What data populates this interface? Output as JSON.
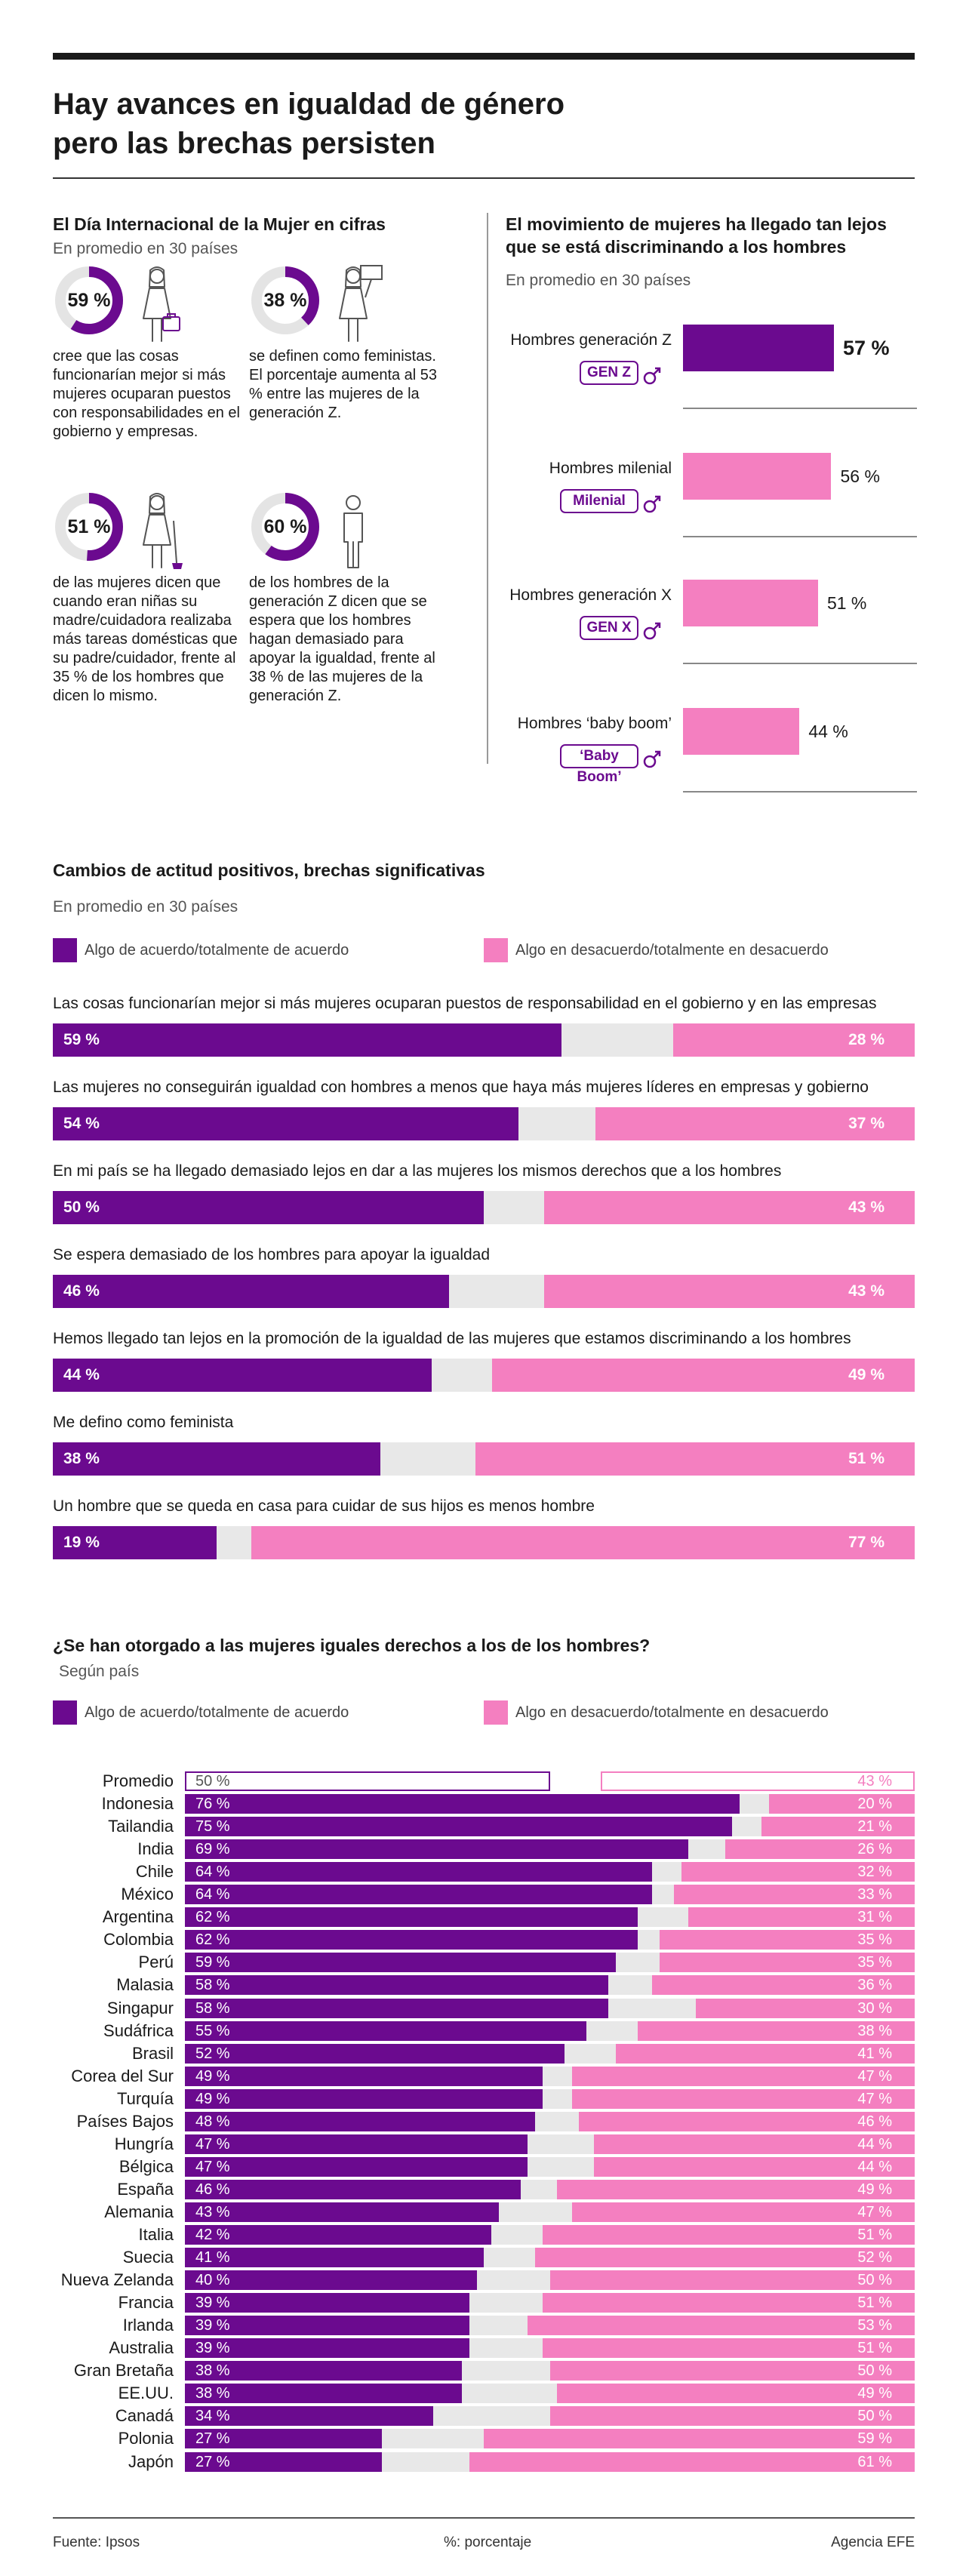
{
  "header": {
    "title_line1": "Hay avances en igualdad de género",
    "title_line2": "pero las brechas persisten"
  },
  "colors": {
    "agree": "#6b0a8f",
    "disagree": "#f47fc0",
    "neutral": "#e8e8e8",
    "accent": "#6b0a8f"
  },
  "stats_section": {
    "title": "El Día Internacional de la Mujer en cifras",
    "subtitle": "En promedio en 30 países",
    "stats": [
      {
        "value": 59,
        "label": "59 %",
        "text": "cree que las cosas funcionarían mejor si más mujeres ocuparan puestos con responsabilidades en el gobierno y empresas.",
        "icon": "businesswoman-icon"
      },
      {
        "value": 38,
        "label": "38 %",
        "text": "se definen como feministas. El porcentaje aumenta al 53 % entre las mujeres de la generación Z.",
        "icon": "woman-with-sign-icon"
      },
      {
        "value": 51,
        "label": "51 %",
        "text": "de las mujeres dicen que cuando eran niñas su madre/cuidadora realizaba más tareas domésticas que su padre/cuidador, frente al 35 % de los hombres que dicen lo mismo.",
        "icon": "woman-with-mop-icon"
      },
      {
        "value": 60,
        "label": "60 %",
        "text": "de los hombres de la generación Z dicen que se espera que los hombres hagan demasiado para apoyar la igualdad, frente al 38 % de las mujeres de la generación Z.",
        "icon": "man-icon"
      }
    ]
  },
  "gen_section": {
    "title_line1": "El movimiento de mujeres ha llegado tan lejos",
    "title_line2": "que se está discriminando a los hombres",
    "subtitle": "En promedio en 30 países"
  },
  "chart_data": [
    {
      "type": "bar",
      "orientation": "horizontal",
      "title": "El movimiento de mujeres ha llegado tan lejos que se está discriminando a los hombres",
      "subtitle": "En promedio en 30 países",
      "unit": "%",
      "categories": [
        "Hombres generación Z",
        "Hombres milenial",
        "Hombres generación X",
        "Hombres ‘baby boom’"
      ],
      "badges": [
        "GEN Z",
        "Milenial",
        "GEN X",
        "‘Baby Boom’"
      ],
      "values": [
        57,
        56,
        51,
        44
      ],
      "value_labels": [
        "57 %",
        "56 %",
        "51 %",
        "44 %"
      ],
      "highlight_index": 0
    },
    {
      "type": "bar",
      "orientation": "horizontal-stacked",
      "title": "Cambios de actitud positivos, brechas significativas",
      "subtitle": "En promedio en 30 países",
      "legend": [
        "Algo de acuerdo/totalmente de acuerdo",
        "Algo en desacuerdo/totalmente en desacuerdo"
      ],
      "unit": "%",
      "rows": [
        {
          "question": "Las cosas funcionarían mejor si más mujeres ocuparan puestos de responsabilidad en el gobierno y en las empresas",
          "agree": 59,
          "disagree": 28,
          "agree_label": "59 %",
          "disagree_label": "28 %"
        },
        {
          "question": "Las mujeres no conseguirán igualdad con hombres a menos que haya más mujeres líderes en empresas y gobierno",
          "agree": 54,
          "disagree": 37,
          "agree_label": "54 %",
          "disagree_label": "37 %"
        },
        {
          "question": "En mi país se ha llegado demasiado lejos en dar a las mujeres los mismos derechos que a los hombres",
          "agree": 50,
          "disagree": 43,
          "agree_label": "50 %",
          "disagree_label": "43 %"
        },
        {
          "question": "Se espera demasiado de los hombres para apoyar la igualdad",
          "agree": 46,
          "disagree": 43,
          "agree_label": "46 %",
          "disagree_label": "43 %"
        },
        {
          "question": "Hemos llegado tan lejos en la promoción de la igualdad de las mujeres que estamos discriminando a los hombres",
          "agree": 44,
          "disagree": 49,
          "agree_label": "44 %",
          "disagree_label": "49 %"
        },
        {
          "question": "Me defino como feminista",
          "agree": 38,
          "disagree": 51,
          "agree_label": "38 %",
          "disagree_label": "51 %"
        },
        {
          "question": "Un hombre que se queda en casa para cuidar de sus hijos es menos hombre",
          "agree": 19,
          "disagree": 77,
          "agree_label": "19 %",
          "disagree_label": "77 %"
        }
      ]
    },
    {
      "type": "bar",
      "orientation": "horizontal-stacked",
      "title": "¿Se han otorgado a las mujeres iguales derechos a los de los hombres?",
      "subtitle": "Según país",
      "legend": [
        "Algo de acuerdo/totalmente de acuerdo",
        "Algo en desacuerdo/totalmente en desacuerdo"
      ],
      "unit": "%",
      "rows": [
        {
          "country": "Promedio",
          "agree": 50,
          "disagree": 43,
          "agree_label": "50 %",
          "disagree_label": "43 %",
          "outline": true
        },
        {
          "country": "Indonesia",
          "agree": 76,
          "disagree": 20,
          "agree_label": "76 %",
          "disagree_label": "20 %"
        },
        {
          "country": "Tailandia",
          "agree": 75,
          "disagree": 21,
          "agree_label": "75 %",
          "disagree_label": "21 %"
        },
        {
          "country": "India",
          "agree": 69,
          "disagree": 26,
          "agree_label": "69 %",
          "disagree_label": "26 %"
        },
        {
          "country": "Chile",
          "agree": 64,
          "disagree": 32,
          "agree_label": "64 %",
          "disagree_label": "32 %"
        },
        {
          "country": "México",
          "agree": 64,
          "disagree": 33,
          "agree_label": "64 %",
          "disagree_label": "33 %"
        },
        {
          "country": "Argentina",
          "agree": 62,
          "disagree": 31,
          "agree_label": "62 %",
          "disagree_label": "31 %"
        },
        {
          "country": "Colombia",
          "agree": 62,
          "disagree": 35,
          "agree_label": "62 %",
          "disagree_label": "35 %"
        },
        {
          "country": "Perú",
          "agree": 59,
          "disagree": 35,
          "agree_label": "59 %",
          "disagree_label": "35 %"
        },
        {
          "country": "Malasia",
          "agree": 58,
          "disagree": 36,
          "agree_label": "58 %",
          "disagree_label": "36 %"
        },
        {
          "country": "Singapur",
          "agree": 58,
          "disagree": 30,
          "agree_label": "58 %",
          "disagree_label": "30 %"
        },
        {
          "country": "Sudáfrica",
          "agree": 55,
          "disagree": 38,
          "agree_label": "55 %",
          "disagree_label": "38 %"
        },
        {
          "country": "Brasil",
          "agree": 52,
          "disagree": 41,
          "agree_label": "52 %",
          "disagree_label": "41 %"
        },
        {
          "country": "Corea del Sur",
          "agree": 49,
          "disagree": 47,
          "agree_label": "49 %",
          "disagree_label": "47 %"
        },
        {
          "country": "Turquía",
          "agree": 49,
          "disagree": 47,
          "agree_label": "49 %",
          "disagree_label": "47 %"
        },
        {
          "country": "Países Bajos",
          "agree": 48,
          "disagree": 46,
          "agree_label": "48 %",
          "disagree_label": "46 %"
        },
        {
          "country": "Hungría",
          "agree": 47,
          "disagree": 44,
          "agree_label": "47 %",
          "disagree_label": "44 %"
        },
        {
          "country": "Bélgica",
          "agree": 47,
          "disagree": 44,
          "agree_label": "47 %",
          "disagree_label": "44 %"
        },
        {
          "country": "España",
          "agree": 46,
          "disagree": 49,
          "agree_label": "46 %",
          "disagree_label": "49 %"
        },
        {
          "country": "Alemania",
          "agree": 43,
          "disagree": 47,
          "agree_label": "43 %",
          "disagree_label": "47 %"
        },
        {
          "country": "Italia",
          "agree": 42,
          "disagree": 51,
          "agree_label": "42 %",
          "disagree_label": "51 %"
        },
        {
          "country": "Suecia",
          "agree": 41,
          "disagree": 52,
          "agree_label": "41 %",
          "disagree_label": "52 %"
        },
        {
          "country": "Nueva Zelanda",
          "agree": 40,
          "disagree": 50,
          "agree_label": "40 %",
          "disagree_label": "50 %"
        },
        {
          "country": "Francia",
          "agree": 39,
          "disagree": 51,
          "agree_label": "39 %",
          "disagree_label": "51 %"
        },
        {
          "country": "Irlanda",
          "agree": 39,
          "disagree": 53,
          "agree_label": "39 %",
          "disagree_label": "53 %"
        },
        {
          "country": "Australia",
          "agree": 39,
          "disagree": 51,
          "agree_label": "39 %",
          "disagree_label": "51 %"
        },
        {
          "country": "Gran Bretaña",
          "agree": 38,
          "disagree": 50,
          "agree_label": "38 %",
          "disagree_label": "50 %"
        },
        {
          "country": "EE.UU.",
          "agree": 38,
          "disagree": 49,
          "agree_label": "38 %",
          "disagree_label": "49 %"
        },
        {
          "country": "Canadá",
          "agree": 34,
          "disagree": 50,
          "agree_label": "34 %",
          "disagree_label": "50 %"
        },
        {
          "country": "Polonia",
          "agree": 27,
          "disagree": 59,
          "agree_label": "27 %",
          "disagree_label": "59 %"
        },
        {
          "country": "Japón",
          "agree": 27,
          "disagree": 61,
          "agree_label": "27 %",
          "disagree_label": "61 %"
        }
      ]
    }
  ],
  "footer": {
    "source": "Fuente: Ipsos",
    "unit_note": "%: porcentaje",
    "agency": "Agencia EFE"
  }
}
